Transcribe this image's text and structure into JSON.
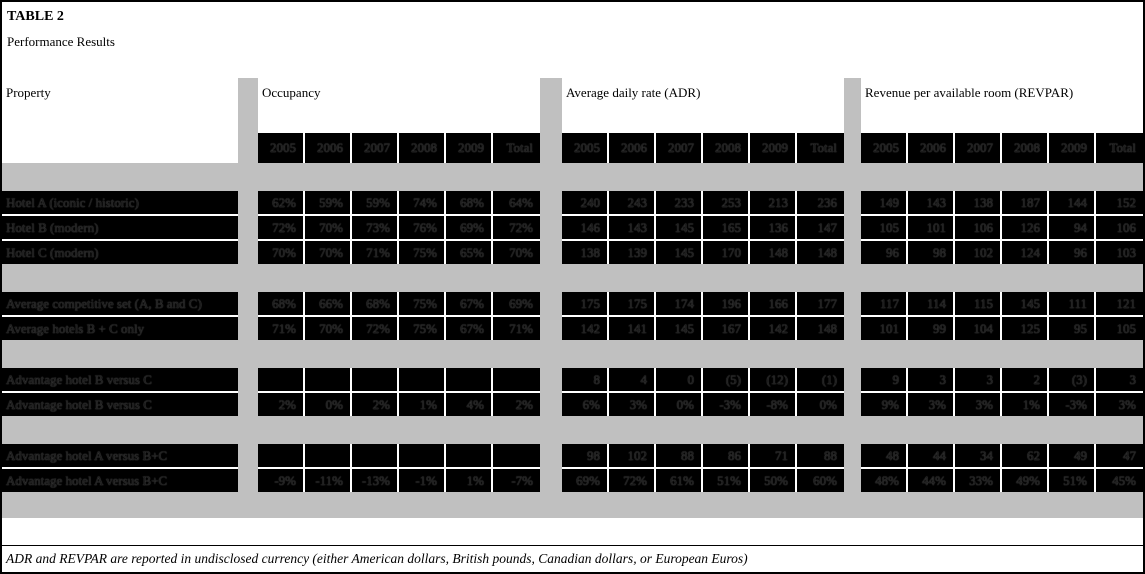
{
  "title": "TABLE 2",
  "subtitle": "Performance Results",
  "header": {
    "property": "Property",
    "sections": [
      "Occupancy",
      "Average daily rate (ADR)",
      "Revenue per available room (REVPAR)"
    ],
    "years": [
      "2005",
      "2006",
      "2007",
      "2008",
      "2009",
      "Total"
    ]
  },
  "groups": [
    {
      "rows": [
        {
          "label": "Hotel A (iconic / historic)",
          "occupancy": [
            "62%",
            "59%",
            "59%",
            "74%",
            "68%",
            "64%"
          ],
          "adr": [
            "240",
            "243",
            "233",
            "253",
            "213",
            "236"
          ],
          "revpar": [
            "149",
            "143",
            "138",
            "187",
            "144",
            "152"
          ]
        },
        {
          "label": "Hotel B (modern)",
          "occupancy": [
            "72%",
            "70%",
            "73%",
            "76%",
            "69%",
            "72%"
          ],
          "adr": [
            "146",
            "143",
            "145",
            "165",
            "136",
            "147"
          ],
          "revpar": [
            "105",
            "101",
            "106",
            "126",
            "94",
            "106"
          ]
        },
        {
          "label": "Hotel C (modern)",
          "occupancy": [
            "70%",
            "70%",
            "71%",
            "75%",
            "65%",
            "70%"
          ],
          "adr": [
            "138",
            "139",
            "145",
            "170",
            "148",
            "148"
          ],
          "revpar": [
            "96",
            "98",
            "102",
            "124",
            "96",
            "103"
          ]
        }
      ]
    },
    {
      "rows": [
        {
          "label": "Average competitive set (A, B and C)",
          "occupancy": [
            "68%",
            "66%",
            "68%",
            "75%",
            "67%",
            "69%"
          ],
          "adr": [
            "175",
            "175",
            "174",
            "196",
            "166",
            "177"
          ],
          "revpar": [
            "117",
            "114",
            "115",
            "145",
            "111",
            "121"
          ]
        },
        {
          "label": "Average hotels B + C only",
          "occupancy": [
            "71%",
            "70%",
            "72%",
            "75%",
            "67%",
            "71%"
          ],
          "adr": [
            "142",
            "141",
            "145",
            "167",
            "142",
            "148"
          ],
          "revpar": [
            "101",
            "99",
            "104",
            "125",
            "95",
            "105"
          ]
        }
      ]
    },
    {
      "rows": [
        {
          "label": "Advantage hotel B versus C",
          "occupancy": [
            "",
            "",
            "",
            "",
            "",
            ""
          ],
          "adr": [
            "8",
            "4",
            "0",
            "(5)",
            "(12)",
            "(1)"
          ],
          "revpar": [
            "9",
            "3",
            "3",
            "2",
            "(3)",
            "3"
          ]
        },
        {
          "label": "Advantage hotel B versus C",
          "occupancy": [
            "2%",
            "0%",
            "2%",
            "1%",
            "4%",
            "2%"
          ],
          "adr": [
            "6%",
            "3%",
            "0%",
            "-3%",
            "-8%",
            "0%"
          ],
          "revpar": [
            "9%",
            "3%",
            "3%",
            "1%",
            "-3%",
            "3%"
          ]
        }
      ]
    },
    {
      "rows": [
        {
          "label": "Advantage hotel A versus B+C",
          "occupancy": [
            "",
            "",
            "",
            "",
            "",
            ""
          ],
          "adr": [
            "98",
            "102",
            "88",
            "86",
            "71",
            "88"
          ],
          "revpar": [
            "48",
            "44",
            "34",
            "62",
            "49",
            "47"
          ]
        },
        {
          "label": "Advantage hotel A versus B+C",
          "occupancy": [
            "-9%",
            "-11%",
            "-13%",
            "-1%",
            "1%",
            "-7%"
          ],
          "adr": [
            "69%",
            "72%",
            "61%",
            "51%",
            "50%",
            "60%"
          ],
          "revpar": [
            "48%",
            "44%",
            "33%",
            "49%",
            "51%",
            "45%"
          ]
        }
      ]
    }
  ],
  "footnote": "ADR and REVPAR are reported in undisclosed currency (either American dollars, British pounds, Canadian dollars, or European Euros)",
  "colors": {
    "band": "#c0c0c0",
    "cell_background": "#000000",
    "ghost_text": "#1c1c1c",
    "page_background": "#ffffff"
  }
}
